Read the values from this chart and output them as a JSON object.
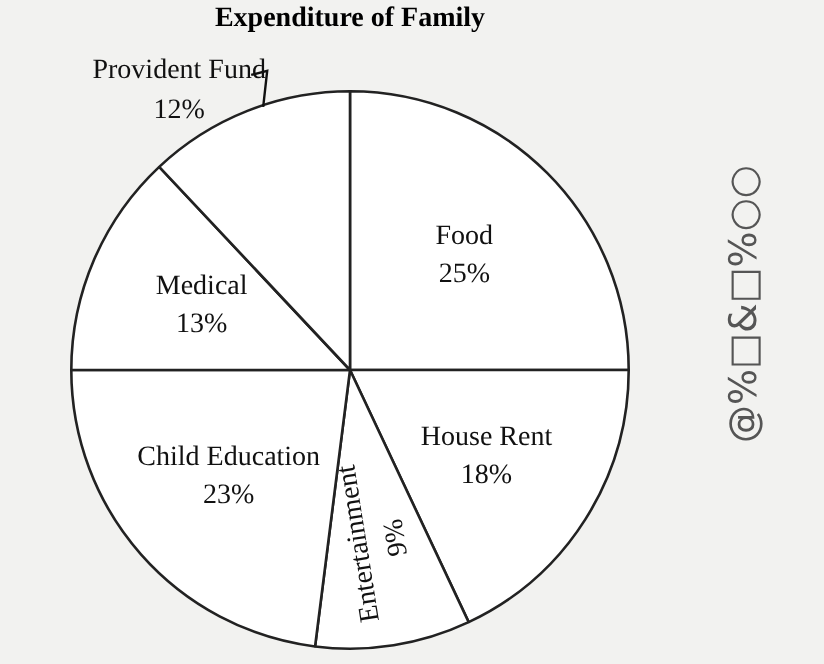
{
  "chart_data": {
    "type": "pie",
    "title": "Expenditure of Family",
    "categories": [
      "Food",
      "House Rent",
      "Entertainment",
      "Child Education",
      "Medical",
      "Provident Fund"
    ],
    "values": [
      25,
      18,
      9,
      23,
      13,
      12
    ],
    "value_labels": [
      "25%",
      "18%",
      "9%",
      "23%",
      "13%",
      "12%"
    ],
    "colors": [
      "#ffffff",
      "#ffffff",
      "#ffffff",
      "#ffffff",
      "#ffffff",
      "#ffffff"
    ],
    "legend": false,
    "annotations": [
      "@%□&□%○○"
    ]
  }
}
